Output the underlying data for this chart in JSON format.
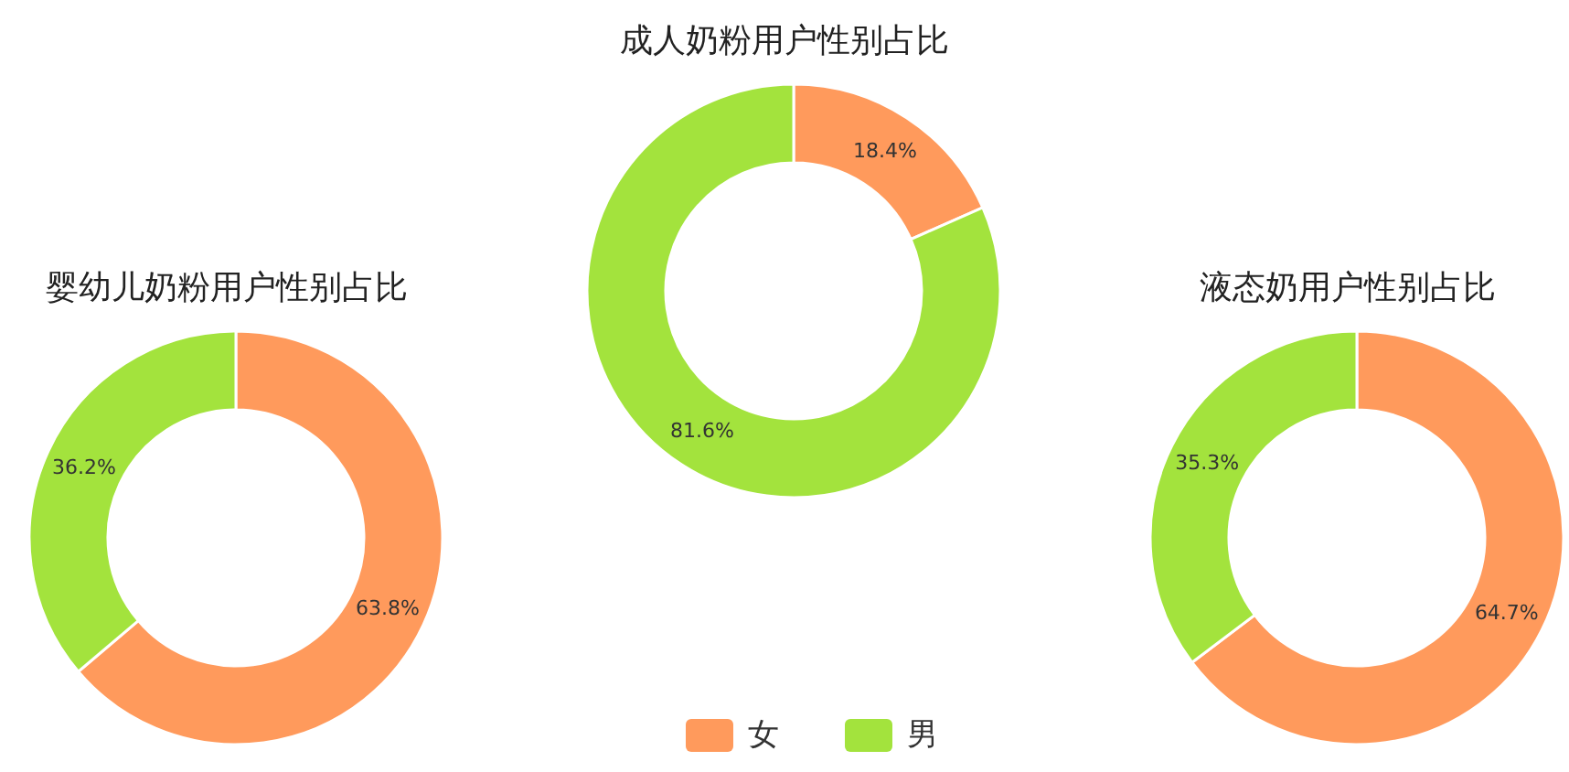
{
  "chart_data": [
    {
      "type": "donut",
      "title": "婴幼儿奶粉用户性别占比",
      "categories": [
        "女",
        "男"
      ],
      "values": [
        63.8,
        36.2
      ],
      "value_labels": [
        "63.8%",
        "36.2%"
      ],
      "colors": [
        "#ff9a5c",
        "#a3e33d"
      ],
      "legend": "bottom"
    },
    {
      "type": "donut",
      "title": "成人奶粉用户性别占比",
      "categories": [
        null,
        null
      ],
      "values": [
        18.4,
        81.6
      ],
      "value_labels": [
        "18.4%",
        "81.6%"
      ],
      "colors": [
        "#ff9a5c",
        "#a3e33d"
      ]
    },
    {
      "type": "donut",
      "title": "液态奶用户性别占比",
      "categories": [
        null,
        null
      ],
      "values": [
        64.7,
        35.3
      ],
      "value_labels": [
        "64.7%",
        "35.3%"
      ],
      "colors": [
        "#ff9a5c",
        "#a3e33d"
      ]
    }
  ]
}
